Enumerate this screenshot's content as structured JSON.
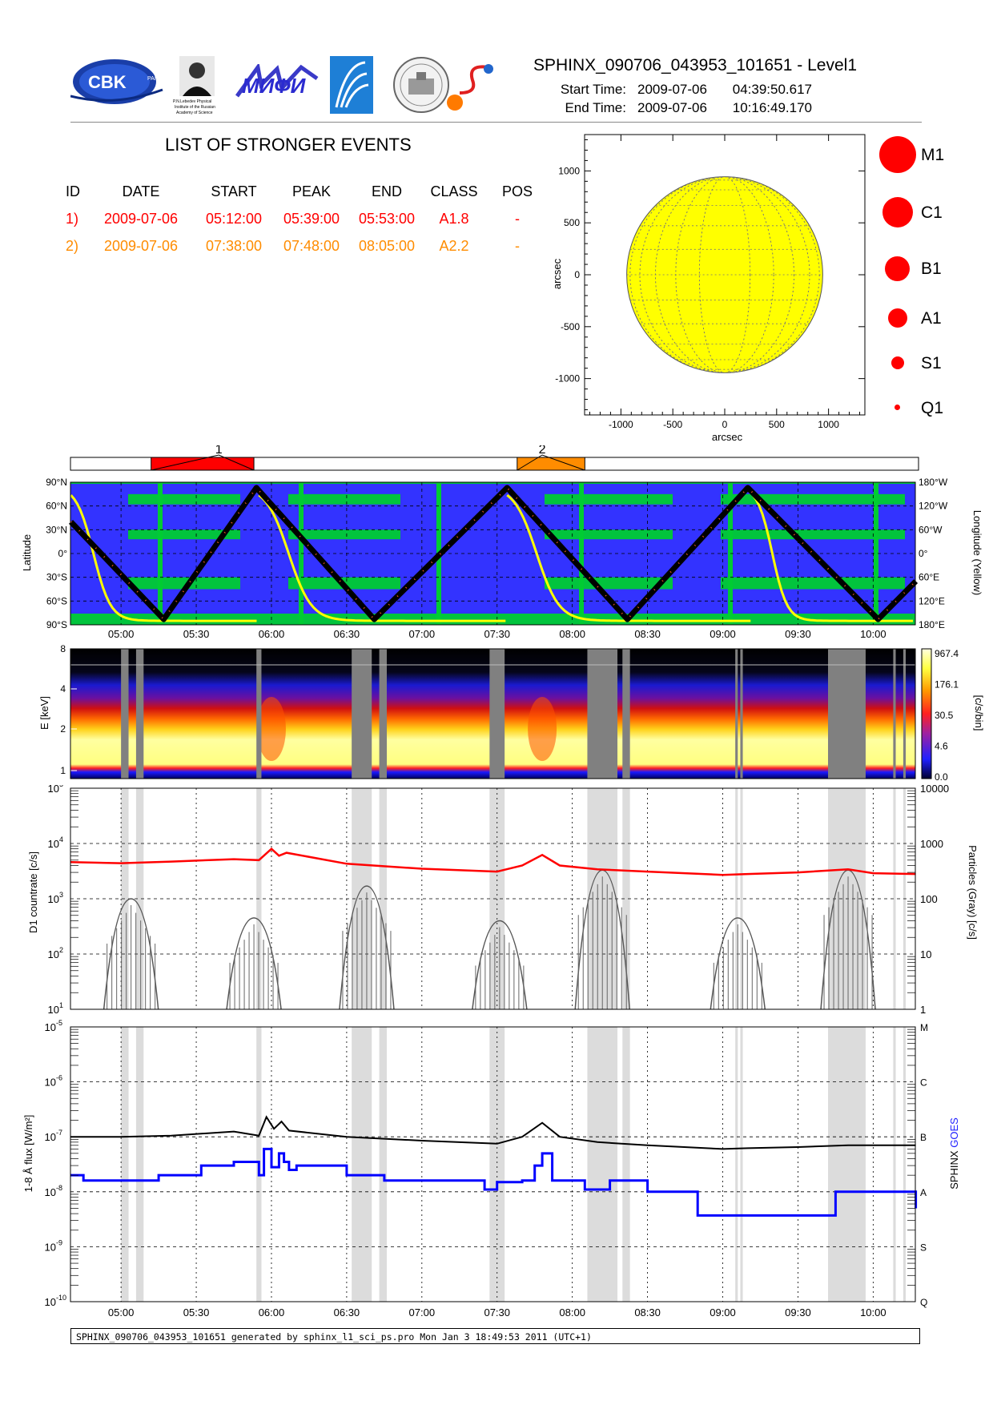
{
  "header": {
    "title": "SPHINX_090706_043953_101651 - Level1",
    "start_label": "Start Time:",
    "start_date": "2009-07-06",
    "start_time": "04:39:50.617",
    "end_label": "End Time:",
    "end_date": "2009-07-06",
    "end_time": "10:16:49.170",
    "logos": [
      {
        "name": "cbk-pan-logo",
        "text": "CBK",
        "subtext": "PAN"
      },
      {
        "name": "lebedev-institute-logo",
        "text": "P.N.Lebedev Physical Institute of the Russian Academy of Science"
      },
      {
        "name": "mifi-logo",
        "text": "МИФИ"
      },
      {
        "name": "institute-emblem-logo",
        "text": ""
      },
      {
        "name": "observatory-seal-logo",
        "text": ""
      },
      {
        "name": "sun-s-logo",
        "text": ""
      }
    ]
  },
  "events": {
    "title": "LIST OF STRONGER EVENTS",
    "columns": [
      "ID",
      "DATE",
      "START",
      "PEAK",
      "END",
      "CLASS",
      "POS"
    ],
    "rows": [
      {
        "id": "1)",
        "date": "2009-07-06",
        "start": "05:12:00",
        "peak": "05:39:00",
        "end": "05:53:00",
        "cls": "A1.8",
        "pos": "-",
        "color": "#ff0000"
      },
      {
        "id": "2)",
        "date": "2009-07-06",
        "start": "07:38:00",
        "peak": "07:48:00",
        "end": "08:05:00",
        "cls": "A2.2",
        "pos": "-",
        "color": "#ff8c00"
      }
    ]
  },
  "size_legend": [
    {
      "label": "M1",
      "diameter": 46
    },
    {
      "label": "C1",
      "diameter": 38
    },
    {
      "label": "B1",
      "diameter": 31
    },
    {
      "label": "A1",
      "diameter": 24
    },
    {
      "label": "S1",
      "diameter": 16
    },
    {
      "label": "Q1",
      "diameter": 7
    }
  ],
  "footer": "SPHINX_090706_043953_101651 generated by sphinx_l1_sci_ps.pro Mon Jan  3 18:49:53 2011 (UTC+1)",
  "chart_data": [
    {
      "type": "scatter",
      "panel": "solar-disk",
      "xlabel": "arcsec",
      "ylabel": "arcsec",
      "xlim": [
        -1350,
        1350
      ],
      "ylim": [
        -1350,
        1350
      ],
      "xticks": [
        "-1000",
        "-500",
        "0",
        "500",
        "1000"
      ],
      "yticks": [
        "1000",
        "500",
        "0",
        "-500",
        "-1000"
      ],
      "disk_radius_arcsec": 944,
      "disk_color": "#ffff00",
      "grid": true
    },
    {
      "type": "bar",
      "panel": "event-timeline",
      "x_range": [
        "04:39:50",
        "10:16:49"
      ],
      "events": [
        {
          "label": "1",
          "start": "05:12",
          "peak": "05:39",
          "end": "05:53",
          "color": "#ff0000"
        },
        {
          "label": "2",
          "start": "07:38",
          "peak": "07:48",
          "end": "08:05",
          "color": "#ff8c00"
        }
      ]
    },
    {
      "type": "line",
      "panel": "latitude-longitude",
      "ylabel": "Latitude",
      "ylabel_right": "Longitude (Yellow)",
      "yticks_left": [
        "90°N",
        "60°N",
        "30°N",
        "0°",
        "30°S",
        "60°S",
        "90°S"
      ],
      "yticks_right": [
        "180°W",
        "120°W",
        "60°W",
        "0°",
        "60°E",
        "120°E",
        "180°E"
      ],
      "xticks": [
        "05:00",
        "05:30",
        "06:00",
        "06:30",
        "07:00",
        "07:30",
        "08:00",
        "08:30",
        "09:00",
        "09:30",
        "10:00"
      ],
      "series": [
        {
          "values_x": [
            "04:40",
            "05:17",
            "05:54",
            "06:41",
            "07:34",
            "08:22",
            "09:10",
            "10:02",
            "10:17"
          ],
          "values_y": [
            40,
            -83,
            83,
            -83,
            83,
            -83,
            83,
            -83,
            -35
          ]
        }
      ],
      "background": {
        "ocean": "#3333ff",
        "land": "#00cc33"
      }
    },
    {
      "type": "heatmap",
      "panel": "spectrogram",
      "ylabel": "E [keV]",
      "yticks": [
        "8",
        "4",
        "2",
        "1"
      ],
      "colorbar_label": "[c/s/bin]",
      "colorbar_ticks": [
        "967.4",
        "176.1",
        "30.5",
        "4.6",
        "0.0"
      ],
      "gaps": [
        [
          "05:00",
          "05:03"
        ],
        [
          "05:06",
          "05:09"
        ],
        [
          "05:54",
          "05:56"
        ],
        [
          "06:32",
          "06:40"
        ],
        [
          "06:43",
          "06:46"
        ],
        [
          "07:27",
          "07:33"
        ],
        [
          "08:06",
          "08:18"
        ],
        [
          "08:20",
          "08:23"
        ],
        [
          "09:05",
          "09:06"
        ],
        [
          "09:07",
          "09:08"
        ],
        [
          "09:42",
          "09:57"
        ],
        [
          "10:08",
          "10:09"
        ],
        [
          "10:12",
          "10:13"
        ]
      ]
    },
    {
      "type": "line",
      "panel": "d1-countrate",
      "ylabel": "D1 countrate [c/s]",
      "ylabel_right": "Particles (Gray) [c/s]",
      "yscale": "log",
      "ylim": [
        10,
        100000
      ],
      "yticks_left": [
        "10^1",
        "10^2",
        "10^3",
        "10^4",
        "10^5"
      ],
      "yticks_right": [
        "1",
        "10",
        "100",
        "1000",
        "10000"
      ],
      "series": [
        {
          "color": "#ff0000",
          "x": [
            "04:40",
            "05:00",
            "05:20",
            "05:45",
            "05:55",
            "06:00",
            "06:03",
            "06:06",
            "06:30",
            "07:00",
            "07:30",
            "07:40",
            "07:48",
            "07:55",
            "08:10",
            "08:30",
            "09:00",
            "09:10",
            "09:30",
            "09:50",
            "10:00",
            "10:17"
          ],
          "y": [
            4600,
            4400,
            4700,
            5200,
            5000,
            8000,
            6000,
            6800,
            4300,
            3500,
            3100,
            4000,
            6200,
            4000,
            3400,
            3100,
            2700,
            2800,
            3000,
            3400,
            2900,
            2800
          ]
        }
      ],
      "particle_peaks_cs": [
        {
          "time": "05:04",
          "value": 100
        },
        {
          "time": "05:53",
          "value": 45
        },
        {
          "time": "06:38",
          "value": 170
        },
        {
          "time": "07:31",
          "value": 40
        },
        {
          "time": "08:12",
          "value": 330
        },
        {
          "time": "09:06",
          "value": 45
        },
        {
          "time": "09:50",
          "value": 330
        }
      ]
    },
    {
      "type": "line",
      "panel": "flux",
      "ylabel": "1-8 Å flux [W/m²]",
      "ylabel_right": "SPHINX GOES",
      "yscale": "log",
      "ylim": [
        1e-10,
        1e-05
      ],
      "yticks_left": [
        "10^-5",
        "10^-6",
        "10^-7",
        "10^-8",
        "10^-9",
        "10^-10"
      ],
      "class_labels": [
        "M",
        "C",
        "B",
        "A",
        "S",
        "Q"
      ],
      "xticks": [
        "05:00",
        "05:30",
        "06:00",
        "06:30",
        "07:00",
        "07:30",
        "08:00",
        "08:30",
        "09:00",
        "09:30",
        "10:00"
      ],
      "series": [
        {
          "name": "SPHINX",
          "color": "#000000",
          "x": [
            "04:40",
            "05:00",
            "05:20",
            "05:45",
            "05:55",
            "05:58",
            "06:01",
            "06:04",
            "06:07",
            "06:30",
            "07:00",
            "07:30",
            "07:40",
            "07:48",
            "07:55",
            "08:10",
            "08:30",
            "09:00",
            "09:10",
            "09:30",
            "09:50",
            "10:00",
            "10:17"
          ],
          "y": [
            1e-07,
            1e-07,
            1.05e-07,
            1.25e-07,
            1.05e-07,
            2.3e-07,
            1.4e-07,
            1.9e-07,
            1.3e-07,
            1e-07,
            8.5e-08,
            7.5e-08,
            1e-07,
            1.8e-07,
            1e-07,
            8e-08,
            7e-08,
            6e-08,
            6.2e-08,
            6.5e-08,
            7e-08,
            7e-08,
            7e-08
          ]
        },
        {
          "name": "GOES",
          "color": "#0000ff",
          "x": [
            "04:40",
            "04:45",
            "05:15",
            "05:32",
            "05:45",
            "05:55",
            "05:57",
            "06:00",
            "06:03",
            "06:05",
            "06:07",
            "06:10",
            "06:30",
            "06:45",
            "07:25",
            "07:30",
            "07:40",
            "07:45",
            "07:48",
            "07:52",
            "08:05",
            "08:15",
            "08:30",
            "08:50",
            "09:30",
            "09:45",
            "10:00",
            "10:17"
          ],
          "y": [
            2e-08,
            1.6e-08,
            2e-08,
            3e-08,
            3.5e-08,
            2e-08,
            6e-08,
            2.8e-08,
            5e-08,
            3.5e-08,
            2.5e-08,
            3e-08,
            2e-08,
            1.6e-08,
            1.1e-08,
            1.5e-08,
            1.6e-08,
            3e-08,
            5e-08,
            1.6e-08,
            1.1e-08,
            1.6e-08,
            1e-08,
            3.7e-09,
            3.7e-09,
            1e-08,
            1e-08,
            5e-09
          ]
        }
      ]
    }
  ]
}
